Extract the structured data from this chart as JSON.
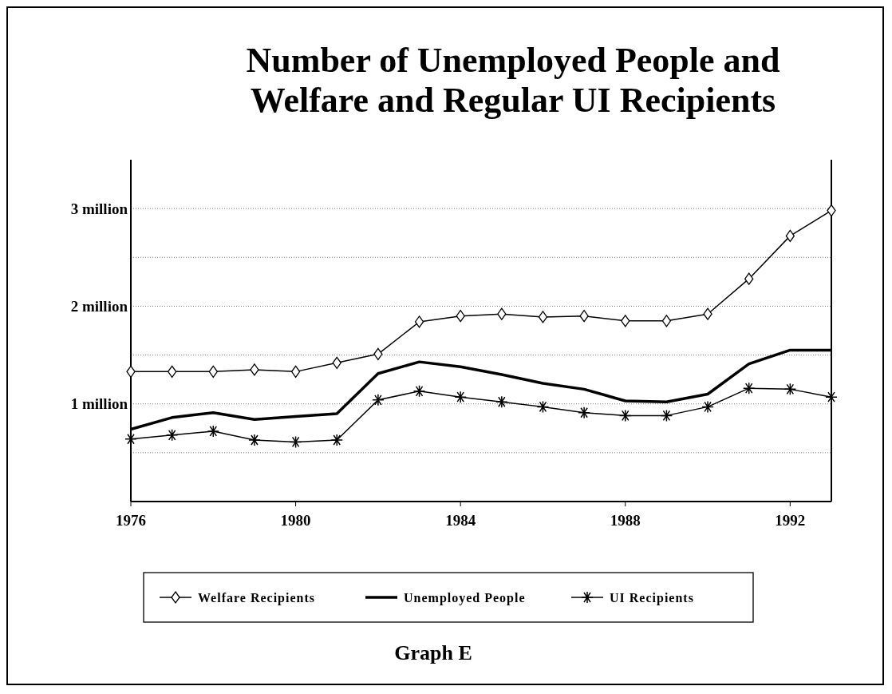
{
  "chart_data": {
    "type": "line",
    "title": "Number of Unemployed People and Welfare and Regular UI Recipients",
    "annotations": [
      "Graph E"
    ],
    "x": [
      1976,
      1977,
      1978,
      1979,
      1980,
      1981,
      1982,
      1983,
      1984,
      1985,
      1986,
      1987,
      1988,
      1989,
      1990,
      1991,
      1992,
      1993
    ],
    "xlim": [
      1976,
      1993
    ],
    "xticks": [
      1976,
      1980,
      1984,
      1988,
      1992
    ],
    "ylim": [
      0,
      3500000
    ],
    "yticks": [
      {
        "value": 500000,
        "label": null
      },
      {
        "value": 1000000,
        "label": "1 million"
      },
      {
        "value": 1500000,
        "label": null
      },
      {
        "value": 2000000,
        "label": "2 million"
      },
      {
        "value": 2500000,
        "label": null
      },
      {
        "value": 3000000,
        "label": "3 million"
      }
    ],
    "grid": "y",
    "legend": "bottom",
    "line_style": "solid",
    "series": [
      {
        "name": "Welfare Recipients",
        "color": "#000000",
        "marker": "diamond",
        "values": [
          1330000,
          1330000,
          1330000,
          1350000,
          1330000,
          1420000,
          1510000,
          1840000,
          1900000,
          1920000,
          1890000,
          1900000,
          1850000,
          1850000,
          1920000,
          2280000,
          2720000,
          2980000
        ]
      },
      {
        "name": "Unemployed People",
        "color": "#000000",
        "marker": "none",
        "values": [
          740000,
          860000,
          910000,
          840000,
          870000,
          900000,
          1310000,
          1430000,
          1380000,
          1300000,
          1210000,
          1150000,
          1030000,
          1020000,
          1100000,
          1410000,
          1550000,
          1550000
        ]
      },
      {
        "name": "UI Recipients",
        "color": "#000000",
        "marker": "cross",
        "values": [
          640000,
          680000,
          720000,
          630000,
          610000,
          630000,
          1040000,
          1130000,
          1070000,
          1020000,
          970000,
          910000,
          880000,
          880000,
          970000,
          1160000,
          1150000,
          1070000
        ]
      }
    ]
  }
}
